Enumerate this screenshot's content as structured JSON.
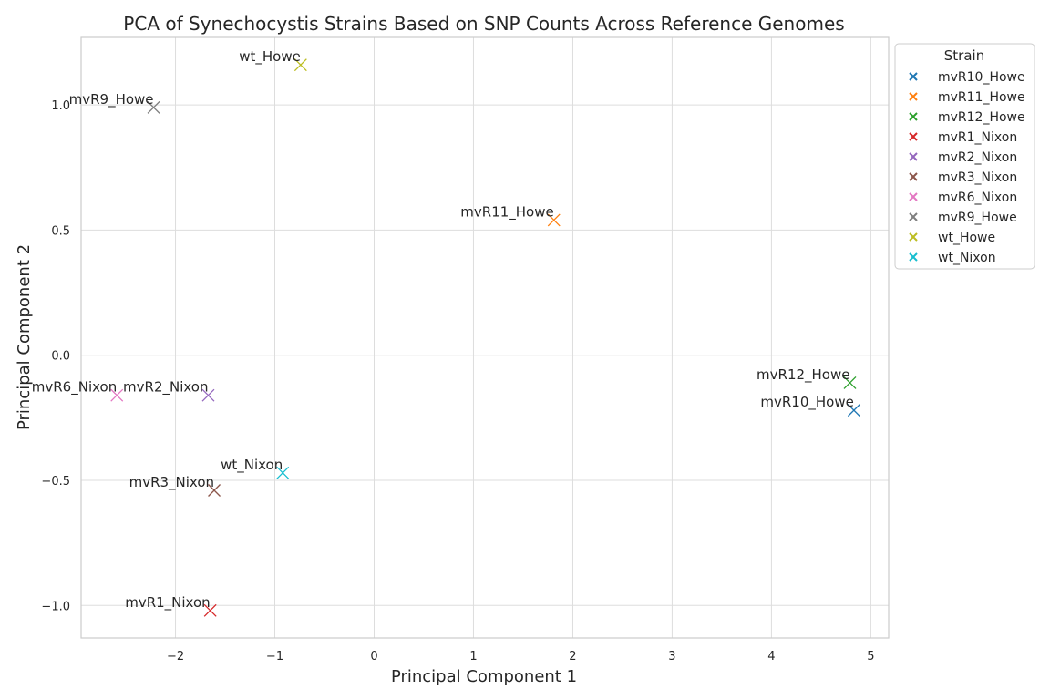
{
  "chart_data": {
    "type": "scatter",
    "title": "PCA of Synechocystis Strains Based on SNP Counts Across Reference Genomes",
    "xlabel": "Principal Component 1",
    "ylabel": "Principal Component 2",
    "xlim": [
      -2.95,
      5.18
    ],
    "ylim": [
      -1.13,
      1.27
    ],
    "xticks": [
      -2,
      -1,
      0,
      1,
      2,
      3,
      4,
      5
    ],
    "xtick_labels": [
      "−2",
      "−1",
      "0",
      "1",
      "2",
      "3",
      "4",
      "5"
    ],
    "yticks": [
      -1.0,
      -0.5,
      0.0,
      0.5,
      1.0
    ],
    "ytick_labels": [
      "−1.0",
      "−0.5",
      "0.0",
      "0.5",
      "1.0"
    ],
    "grid": true,
    "legend": {
      "title": "Strain",
      "placement": "outside-top-right"
    },
    "series": [
      {
        "name": "mvR10_Howe",
        "color": "#1f77b4",
        "x": 4.83,
        "y": -0.22
      },
      {
        "name": "mvR11_Howe",
        "color": "#ff7f0e",
        "x": 1.81,
        "y": 0.54
      },
      {
        "name": "mvR12_Howe",
        "color": "#2ca02c",
        "x": 4.79,
        "y": -0.11
      },
      {
        "name": "mvR1_Nixon",
        "color": "#d62728",
        "x": -1.65,
        "y": -1.02
      },
      {
        "name": "mvR2_Nixon",
        "color": "#9467bd",
        "x": -1.67,
        "y": -0.16
      },
      {
        "name": "mvR3_Nixon",
        "color": "#8c564b",
        "x": -1.61,
        "y": -0.54
      },
      {
        "name": "mvR6_Nixon",
        "color": "#e377c2",
        "x": -2.59,
        "y": -0.16
      },
      {
        "name": "mvR9_Howe",
        "color": "#7f7f7f",
        "x": -2.22,
        "y": 0.99
      },
      {
        "name": "wt_Howe",
        "color": "#bcbd22",
        "x": -0.74,
        "y": 1.16
      },
      {
        "name": "wt_Nixon",
        "color": "#17becf",
        "x": -0.92,
        "y": -0.47
      }
    ]
  }
}
